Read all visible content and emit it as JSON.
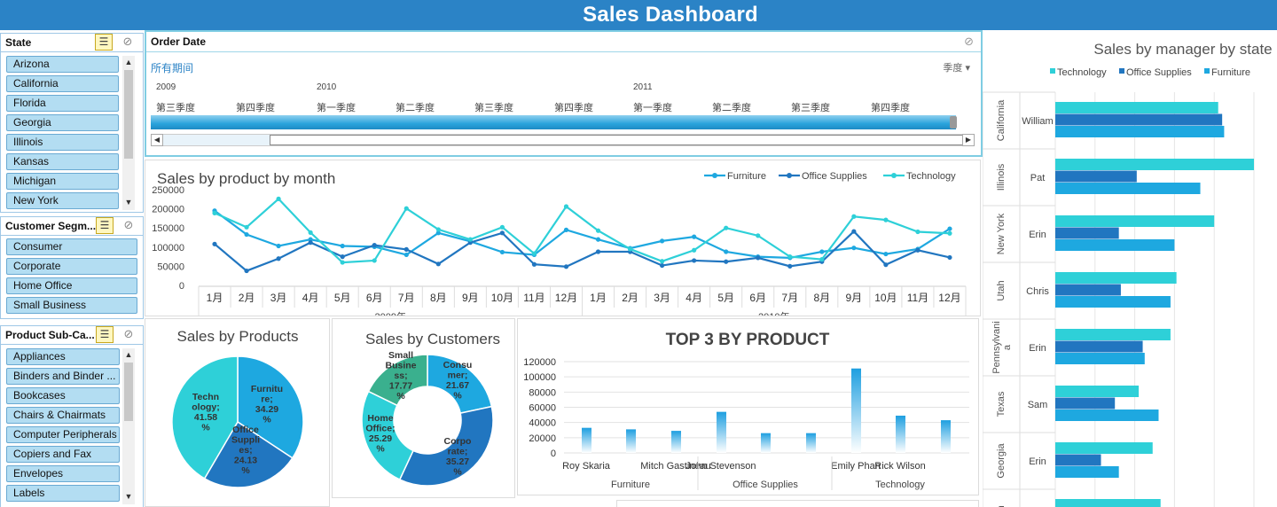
{
  "header": {
    "title": "Sales Dashboard"
  },
  "colors": {
    "furniture": "#1ea8e0",
    "office_supplies": "#2176c0",
    "technology": "#2ed0d8",
    "small_business": "#3ab08e",
    "accent": "#2b83c6"
  },
  "slicers": {
    "state": {
      "label": "State",
      "items": [
        "Arizona",
        "California",
        "Florida",
        "Georgia",
        "Illinois",
        "Kansas",
        "Michigan",
        "New York"
      ]
    },
    "segment": {
      "label": "Customer Segm...",
      "items": [
        "Consumer",
        "Corporate",
        "Home Office",
        "Small Business"
      ]
    },
    "subcat": {
      "label": "Product Sub-Ca...",
      "items": [
        "Appliances",
        "Binders and Binder ...",
        "Bookcases",
        "Chairs & Chairmats",
        "Computer Peripherals",
        "Copiers and Fax",
        "Envelopes",
        "Labels"
      ]
    }
  },
  "timeline": {
    "label": "Order Date",
    "period": "所有期间",
    "level": "季度",
    "years": [
      "2009",
      "2010",
      "2011"
    ],
    "quarters": [
      "第三季度",
      "第四季度",
      "第一季度",
      "第二季度",
      "第三季度",
      "第四季度",
      "第一季度",
      "第二季度",
      "第三季度",
      "第四季度"
    ]
  },
  "line_chart": {
    "title": "Sales by product by  month",
    "chart_data": {
      "type": "line",
      "title": "Sales by product by  month",
      "categories": [
        "1月",
        "2月",
        "3月",
        "4月",
        "5月",
        "6月",
        "7月",
        "8月",
        "9月",
        "10月",
        "11月",
        "12月",
        "1月",
        "2月",
        "3月",
        "4月",
        "5月",
        "6月",
        "7月",
        "8月",
        "9月",
        "10月",
        "11月",
        "12月"
      ],
      "groups": [
        "2009年",
        "2010年"
      ],
      "y_ticks": [
        "250000",
        "200000",
        "150000",
        "100000",
        "50000",
        "0"
      ],
      "ylim": [
        0,
        250000
      ],
      "legend": "top-right",
      "series": [
        {
          "name": "Furniture",
          "values": [
            195000,
            133000,
            103000,
            120000,
            103000,
            101000,
            80000,
            137000,
            115000,
            87000,
            80000,
            145000,
            120000,
            97000,
            116000,
            127000,
            88000,
            75000,
            72000,
            88000,
            98000,
            82000,
            95000,
            148000
          ]
        },
        {
          "name": "Office Supplies",
          "values": [
            108000,
            38000,
            70000,
            112000,
            75000,
            105000,
            94000,
            56000,
            112000,
            137000,
            55000,
            49000,
            88000,
            88000,
            52000,
            65000,
            62000,
            72000,
            50000,
            62000,
            141000,
            54000,
            92000,
            73000
          ]
        },
        {
          "name": "Technology",
          "values": [
            189000,
            152000,
            226000,
            138000,
            60000,
            65000,
            201000,
            146000,
            120000,
            152000,
            83000,
            206000,
            143000,
            95000,
            63000,
            92000,
            150000,
            130000,
            75000,
            68000,
            180000,
            171000,
            140000,
            136000
          ]
        }
      ]
    }
  },
  "pie_products": {
    "title": "Sales by Products",
    "chart_data": {
      "type": "pie",
      "title": "Sales by Products",
      "slices": [
        {
          "name": "Furniture",
          "value": 34.29
        },
        {
          "name": "Office Supplies",
          "value": 24.13
        },
        {
          "name": "Technology",
          "value": 41.58
        }
      ]
    },
    "labels": {
      "furniture": [
        "Furnitu",
        "re;",
        "34.29",
        "%"
      ],
      "office": [
        "Office",
        "Suppli",
        "es;",
        "24.13",
        "%"
      ],
      "technology": [
        "Techn",
        "ology;",
        "41.58",
        "%"
      ]
    }
  },
  "donut_customers": {
    "title": "Sales by Customers",
    "chart_data": {
      "type": "pie",
      "title": "Sales by Customers",
      "slices": [
        {
          "name": "Consumer",
          "value": 21.67
        },
        {
          "name": "Corporate",
          "value": 35.27
        },
        {
          "name": "Home Office",
          "value": 25.29
        },
        {
          "name": "Small Business",
          "value": 17.77
        }
      ]
    },
    "labels": {
      "consumer": [
        "Consu",
        "mer;",
        "21.67",
        "%"
      ],
      "corporate": [
        "Corpo",
        "rate;",
        "35.27",
        "%"
      ],
      "home": [
        "Home",
        "Office;",
        "25.29",
        "%"
      ],
      "small": [
        "Small",
        "Busine",
        "ss;",
        "17.77",
        "%"
      ]
    }
  },
  "top3": {
    "title": "TOP 3 BY PRODUCT",
    "chart_data": {
      "type": "bar",
      "title": "TOP 3 BY PRODUCT",
      "categories": [
        "Roy Skaria",
        "",
        "Mitch Gastineau",
        "John Stevenson",
        "",
        "",
        "Emily Phan",
        "Rick Wilson",
        ""
      ],
      "groups": [
        "Furniture",
        "Office Supplies",
        "Technology"
      ],
      "values": [
        33000,
        31000,
        29000,
        54000,
        26000,
        26000,
        111000,
        49000,
        43000
      ],
      "y_ticks": [
        "120000",
        "100000",
        "80000",
        "60000",
        "40000",
        "20000",
        "0"
      ],
      "ylim": [
        0,
        120000
      ]
    }
  },
  "manager": {
    "title": "Sales by manager by state",
    "chart_data": {
      "type": "bar",
      "title": "Sales by manager by state",
      "legend": [
        "Technology",
        "Office Supplies",
        "Furniture"
      ],
      "rows": [
        {
          "state": "California",
          "manager": "William",
          "technology": 0.82,
          "office_supplies": 0.84,
          "furniture": 0.85
        },
        {
          "state": "Illinois",
          "manager": "Pat",
          "technology": 1.0,
          "office_supplies": 0.41,
          "furniture": 0.73
        },
        {
          "state": "New York",
          "manager": "Erin",
          "technology": 0.8,
          "office_supplies": 0.32,
          "furniture": 0.6
        },
        {
          "state": "Utah",
          "manager": "Chris",
          "technology": 0.61,
          "office_supplies": 0.33,
          "furniture": 0.58
        },
        {
          "state": "Pennsylvania",
          "manager": "Erin",
          "technology": 0.58,
          "office_supplies": 0.44,
          "furniture": 0.45
        },
        {
          "state": "Texas",
          "manager": "Sam",
          "technology": 0.42,
          "office_supplies": 0.3,
          "furniture": 0.52
        },
        {
          "state": "Georgia",
          "manager": "Erin",
          "technology": 0.49,
          "office_supplies": 0.23,
          "furniture": 0.32
        },
        {
          "state": "ngton",
          "manager": "",
          "technology": 0.53,
          "office_supplies": 0,
          "furniture": 0
        }
      ]
    },
    "state_lines": {
      "penn": [
        "Pennsylvani",
        "a"
      ]
    }
  }
}
